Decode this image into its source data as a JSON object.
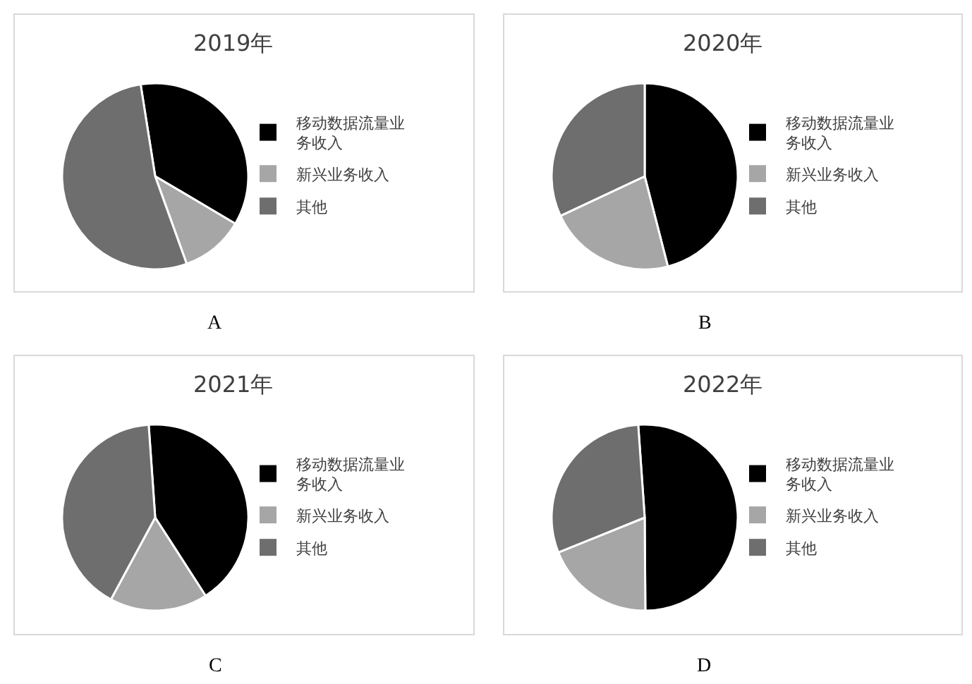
{
  "chart_data": [
    {
      "type": "pie",
      "title": "2019年",
      "categories": [
        "移动数据流量业务收入",
        "新兴业务收入",
        "其他"
      ],
      "values": [
        36,
        11,
        53
      ],
      "colors": [
        "#000000",
        "#a6a6a6",
        "#6e6e6e"
      ],
      "legend": "right",
      "annotations": [
        "A"
      ]
    },
    {
      "type": "pie",
      "title": "2020年",
      "categories": [
        "移动数据流量业务收入",
        "新兴业务收入",
        "其他"
      ],
      "values": [
        46,
        22,
        32
      ],
      "colors": [
        "#000000",
        "#a6a6a6",
        "#6e6e6e"
      ],
      "legend": "right",
      "annotations": [
        "B"
      ]
    },
    {
      "type": "pie",
      "title": "2021年",
      "categories": [
        "移动数据流量业务收入",
        "新兴业务收入",
        "其他"
      ],
      "values": [
        42,
        17,
        41
      ],
      "colors": [
        "#000000",
        "#a6a6a6",
        "#6e6e6e"
      ],
      "legend": "right",
      "annotations": [
        "C"
      ]
    },
    {
      "type": "pie",
      "title": "2022年",
      "categories": [
        "移动数据流量业务收入",
        "新兴业务收入",
        "其他"
      ],
      "values": [
        51,
        19,
        30
      ],
      "colors": [
        "#000000",
        "#a6a6a6",
        "#6e6e6e"
      ],
      "legend": "right",
      "annotations": [
        "D"
      ]
    }
  ]
}
